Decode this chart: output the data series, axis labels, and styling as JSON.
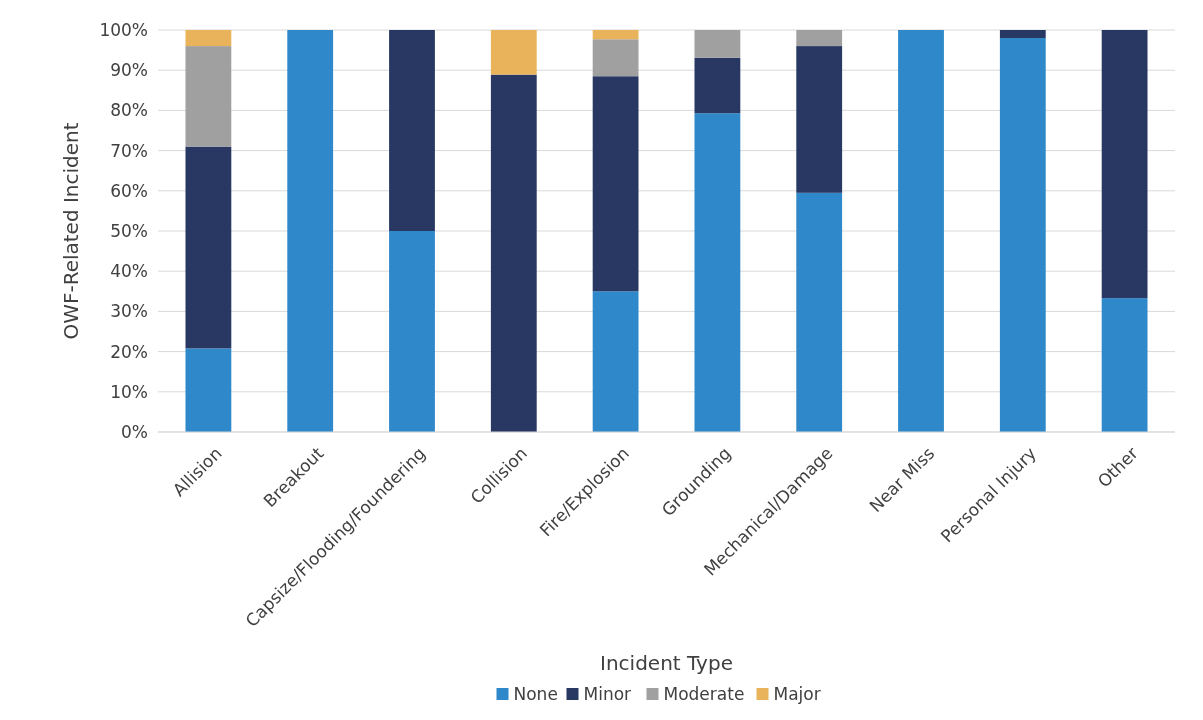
{
  "chart_data": {
    "type": "bar",
    "stacked": true,
    "xlabel": "Incident Type",
    "ylabel": "OWF-Related Incident",
    "categories": [
      "Allision",
      "Breakout",
      "Capsize/Flooding/Foundering",
      "Collision",
      "Fire/Explosion",
      "Grounding",
      "Mechanical/Damage",
      "Near Miss",
      "Personal Injury",
      "Other"
    ],
    "series": [
      {
        "name": "None",
        "color": "#2e88c9",
        "values": [
          20.8,
          100,
          50,
          0,
          35,
          79.3,
          59.5,
          100,
          98,
          33.3
        ]
      },
      {
        "name": "Minor",
        "color": "#293862",
        "values": [
          50.2,
          0,
          50,
          88.9,
          53.5,
          13.8,
          36.5,
          0,
          2,
          66.7
        ]
      },
      {
        "name": "Moderate",
        "color": "#a0a0a0",
        "values": [
          25,
          0,
          0,
          0,
          9.2,
          6.9,
          4,
          0,
          0,
          0
        ]
      },
      {
        "name": "Major",
        "color": "#e8b35a",
        "values": [
          4,
          0,
          0,
          11.1,
          2.3,
          0,
          0,
          0,
          0,
          0
        ]
      }
    ],
    "ylim": [
      0,
      100
    ],
    "yticks": [
      {
        "value": 0,
        "label": "0%"
      },
      {
        "value": 10,
        "label": "10%"
      },
      {
        "value": 20,
        "label": "20%"
      },
      {
        "value": 30,
        "label": "30%"
      },
      {
        "value": 40,
        "label": "40%"
      },
      {
        "value": 50,
        "label": "50%"
      },
      {
        "value": 60,
        "label": "60%"
      },
      {
        "value": 70,
        "label": "70%"
      },
      {
        "value": 80,
        "label": "80%"
      },
      {
        "value": 90,
        "label": "90%"
      },
      {
        "value": 100,
        "label": "100%"
      }
    ],
    "grid": "y",
    "legend": "bottom"
  }
}
